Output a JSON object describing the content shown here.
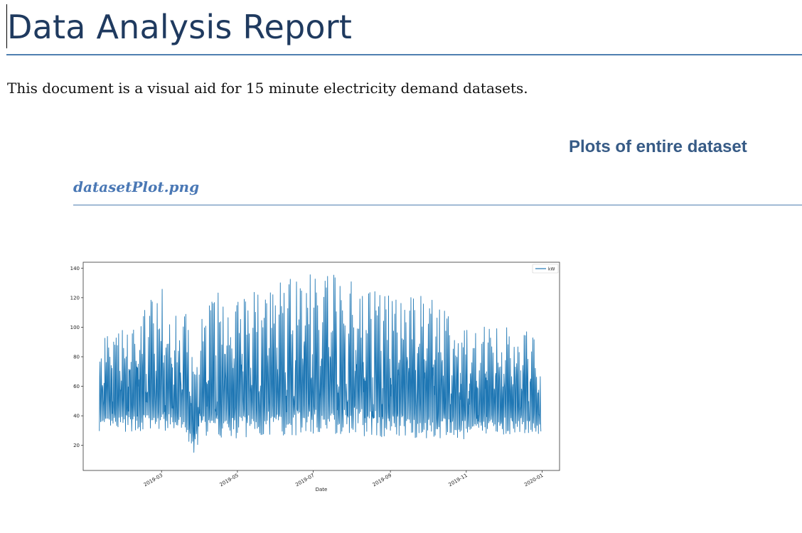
{
  "document": {
    "title": "Data Analysis Report",
    "intro": "This document is a visual aid for 15 minute electricity demand datasets.",
    "section_heading": "Plots of entire dataset",
    "subsection_heading": "datasetPlot.png"
  },
  "colors": {
    "title": "#1f3a5f",
    "heading": "#375b86",
    "subheading": "#4a78b5",
    "rule": "#4f7fb0",
    "series": "#1f77b4"
  },
  "chart_data": {
    "type": "line",
    "xlabel": "Date",
    "ylabel": "",
    "legend": {
      "entries": [
        "kW"
      ],
      "placement": "top-right"
    },
    "x_range": [
      "2019-01-10",
      "2019-12-31"
    ],
    "ylim": [
      3,
      144
    ],
    "yticks": [
      20,
      40,
      60,
      80,
      100,
      120,
      140
    ],
    "xticks": [
      "2019-03",
      "2019-05",
      "2019-07",
      "2019-09",
      "2019-11",
      "2020-01"
    ],
    "grid": false,
    "series": [
      {
        "name": "kW",
        "envelope": {
          "dates": [
            "2019-01-10",
            "2019-01-20",
            "2019-02-01",
            "2019-02-15",
            "2019-03-01",
            "2019-03-10",
            "2019-03-20",
            "2019-03-27",
            "2019-04-01",
            "2019-04-15",
            "2019-05-01",
            "2019-05-15",
            "2019-06-01",
            "2019-06-15",
            "2019-07-01",
            "2019-07-15",
            "2019-08-01",
            "2019-08-15",
            "2019-09-01",
            "2019-09-15",
            "2019-10-01",
            "2019-10-15",
            "2019-11-01",
            "2019-11-05",
            "2019-11-15",
            "2019-12-01",
            "2019-12-15",
            "2019-12-31"
          ],
          "min": [
            28,
            27,
            26,
            27,
            26,
            28,
            25,
            9,
            24,
            22,
            21,
            22,
            22,
            23,
            23,
            23,
            23,
            22,
            22,
            22,
            22,
            21,
            20,
            25,
            24,
            25,
            25,
            26
          ],
          "max": [
            96,
            110,
            106,
            111,
            131,
            106,
            113,
            75,
            110,
            125,
            124,
            126,
            130,
            134,
            136,
            138,
            133,
            130,
            124,
            125,
            122,
            116,
            104,
            97,
            103,
            99,
            103,
            87
          ],
          "typical": [
            45,
            48,
            50,
            52,
            52,
            50,
            48,
            30,
            52,
            50,
            55,
            58,
            58,
            60,
            62,
            62,
            62,
            60,
            58,
            56,
            52,
            50,
            48,
            40,
            48,
            50,
            48,
            42
          ]
        }
      }
    ]
  }
}
